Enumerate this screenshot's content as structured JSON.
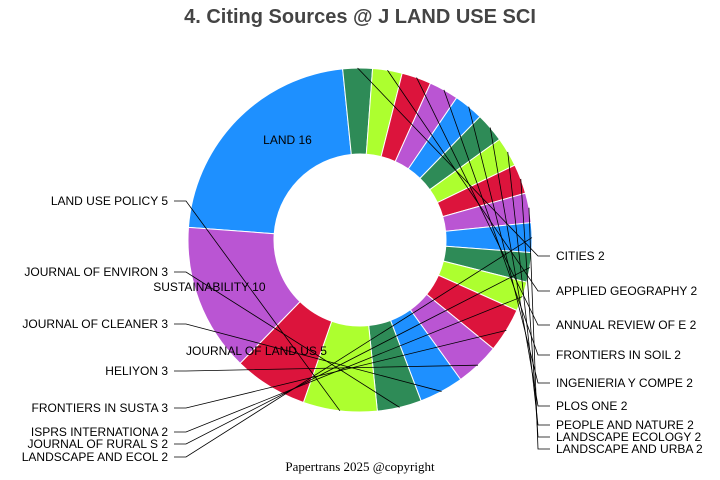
{
  "chart_data": {
    "type": "pie",
    "title": "4. Citing Sources @ J LAND USE SCI",
    "donut": true,
    "colors": [
      "#1e90ff",
      "#2e8b57",
      "#adff2f",
      "#dc143c",
      "#ba55d3"
    ],
    "slices": [
      {
        "name": "LAND",
        "value": 16,
        "label": "LAND 16"
      },
      {
        "name": "CITIES",
        "value": 2,
        "label": "CITIES 2"
      },
      {
        "name": "APPLIED GEOGRAPHY",
        "value": 2,
        "label": "APPLIED GEOGRAPHY 2"
      },
      {
        "name": "ANNUAL REVIEW OF E",
        "value": 2,
        "label": "ANNUAL REVIEW OF E 2"
      },
      {
        "name": "FRONTIERS IN SOIL",
        "value": 2,
        "label": "FRONTIERS IN SOIL  2"
      },
      {
        "name": "INGENIERIA Y COMPE",
        "value": 2,
        "label": "INGENIERIA Y COMPE 2"
      },
      {
        "name": "PLOS ONE",
        "value": 2,
        "label": "PLOS ONE 2"
      },
      {
        "name": "PEOPLE AND NATURE",
        "value": 2,
        "label": "PEOPLE AND NATURE 2"
      },
      {
        "name": "LANDSCAPE ECOLOGY",
        "value": 2,
        "label": "LANDSCAPE ECOLOGY 2"
      },
      {
        "name": "LANDSCAPE AND URBA",
        "value": 2,
        "label": "LANDSCAPE AND URBA 2"
      },
      {
        "name": "LANDSCAPE AND ECOL",
        "value": 2,
        "label": "LANDSCAPE AND ECOL 2"
      },
      {
        "name": "JOURNAL OF RURAL S",
        "value": 2,
        "label": "JOURNAL OF RURAL S 2"
      },
      {
        "name": "ISPRS INTERNATIONA",
        "value": 2,
        "label": "ISPRS INTERNATIONA 2"
      },
      {
        "name": "FRONTIERS IN SUSTA",
        "value": 3,
        "label": "FRONTIERS IN SUSTA 3"
      },
      {
        "name": "HELIYON",
        "value": 3,
        "label": "HELIYON 3"
      },
      {
        "name": "JOURNAL OF CLEANER",
        "value": 3,
        "label": "JOURNAL OF CLEANER 3"
      },
      {
        "name": "JOURNAL OF ENVIRON",
        "value": 3,
        "label": "JOURNAL OF ENVIRON 3"
      },
      {
        "name": "LAND USE POLICY",
        "value": 5,
        "label": "LAND USE POLICY 5"
      },
      {
        "name": "JOURNAL OF LAND US",
        "value": 5,
        "label": "JOURNAL OF LAND US 5"
      },
      {
        "name": "SUSTAINABILITY",
        "value": 10,
        "label": "SUSTAINABILITY 10"
      }
    ]
  },
  "footer": {
    "credit": "Papertrans 2025 @copyright"
  }
}
